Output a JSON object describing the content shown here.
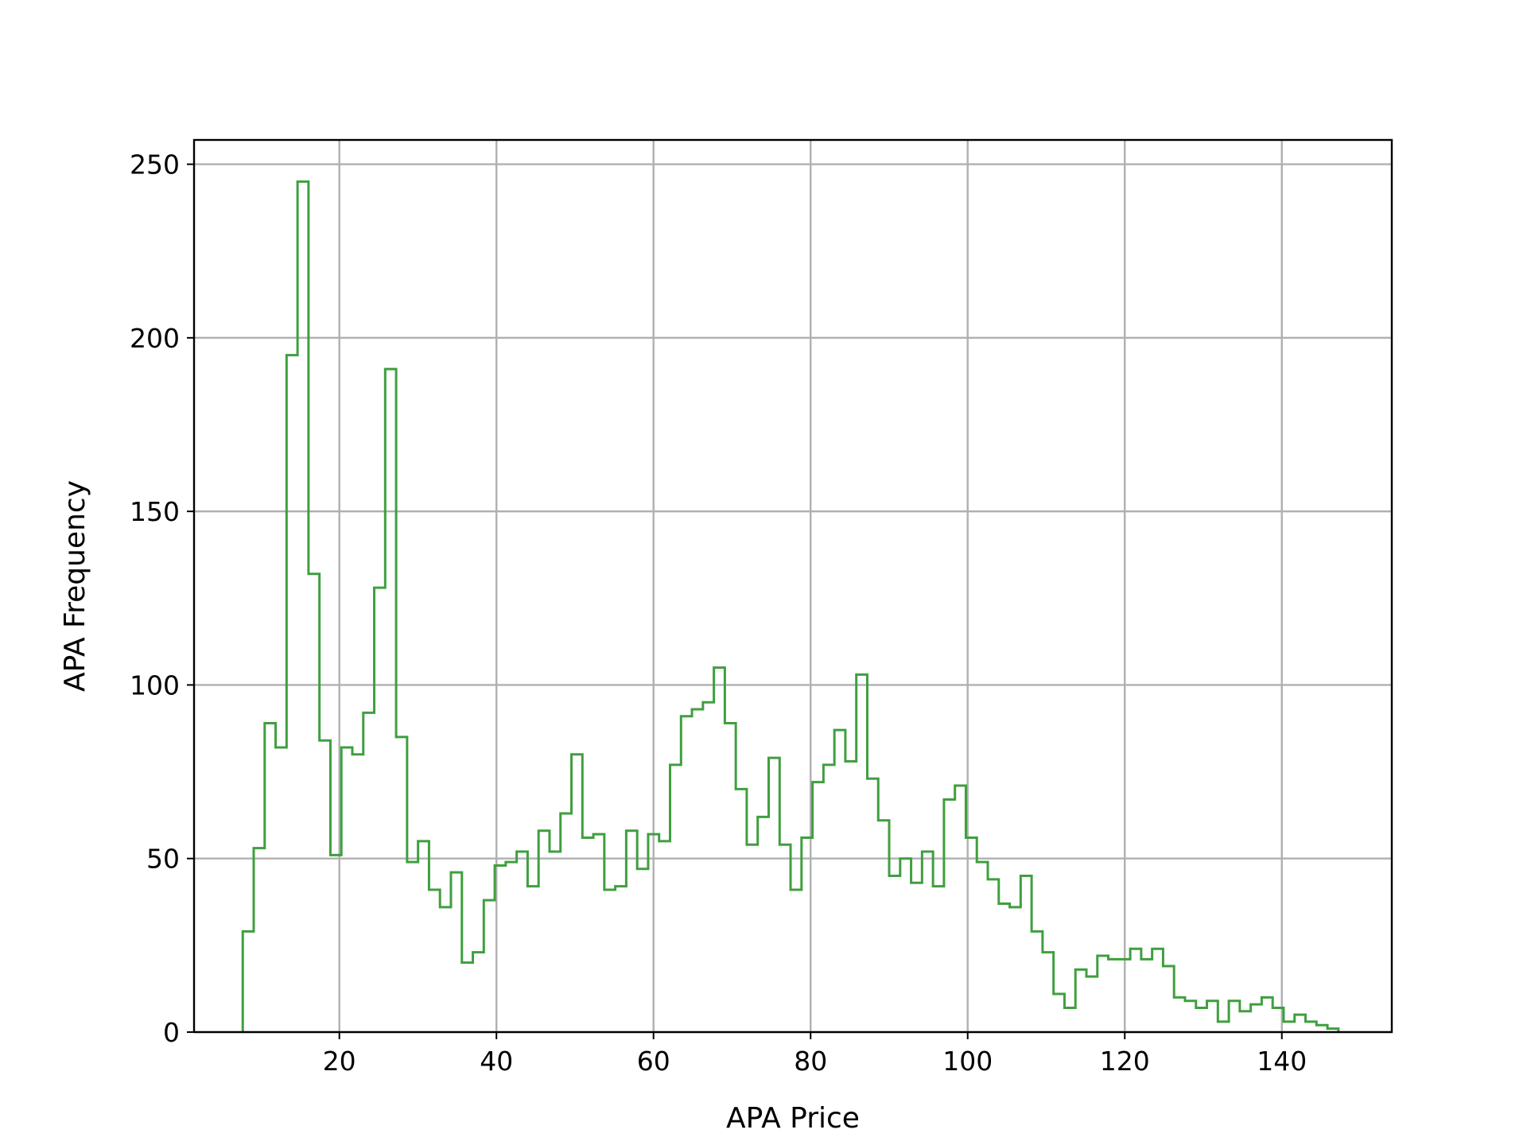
{
  "chart_data": {
    "type": "histogram",
    "style": "step",
    "color": "#3f9f3f",
    "title": "",
    "xlabel": "APA Price",
    "ylabel": "APA Frequency",
    "grid": true,
    "xlim": [
      1.5,
      154
    ],
    "ylim": [
      0,
      257
    ],
    "xticks": [
      20,
      40,
      60,
      80,
      100,
      120,
      140
    ],
    "yticks": [
      0,
      50,
      100,
      150,
      200,
      250
    ],
    "bin_start": 7.7,
    "bin_width": 1.395,
    "counts": [
      29,
      53,
      89,
      82,
      195,
      245,
      132,
      84,
      51,
      82,
      80,
      92,
      128,
      191,
      85,
      49,
      55,
      41,
      36,
      46,
      20,
      23,
      38,
      48,
      49,
      52,
      42,
      58,
      52,
      63,
      80,
      56,
      57,
      41,
      42,
      58,
      47,
      57,
      55,
      77,
      91,
      93,
      95,
      105,
      89,
      70,
      54,
      62,
      79,
      54,
      41,
      56,
      72,
      77,
      87,
      78,
      103,
      73,
      61,
      45,
      50,
      43,
      52,
      42,
      67,
      71,
      56,
      49,
      44,
      37,
      36,
      45,
      29,
      23,
      11,
      7,
      18,
      16,
      22,
      21,
      21,
      24,
      21,
      24,
      19,
      10,
      9,
      7,
      9,
      3,
      9,
      6,
      8,
      10,
      7,
      3,
      5,
      3,
      2,
      1
    ]
  }
}
